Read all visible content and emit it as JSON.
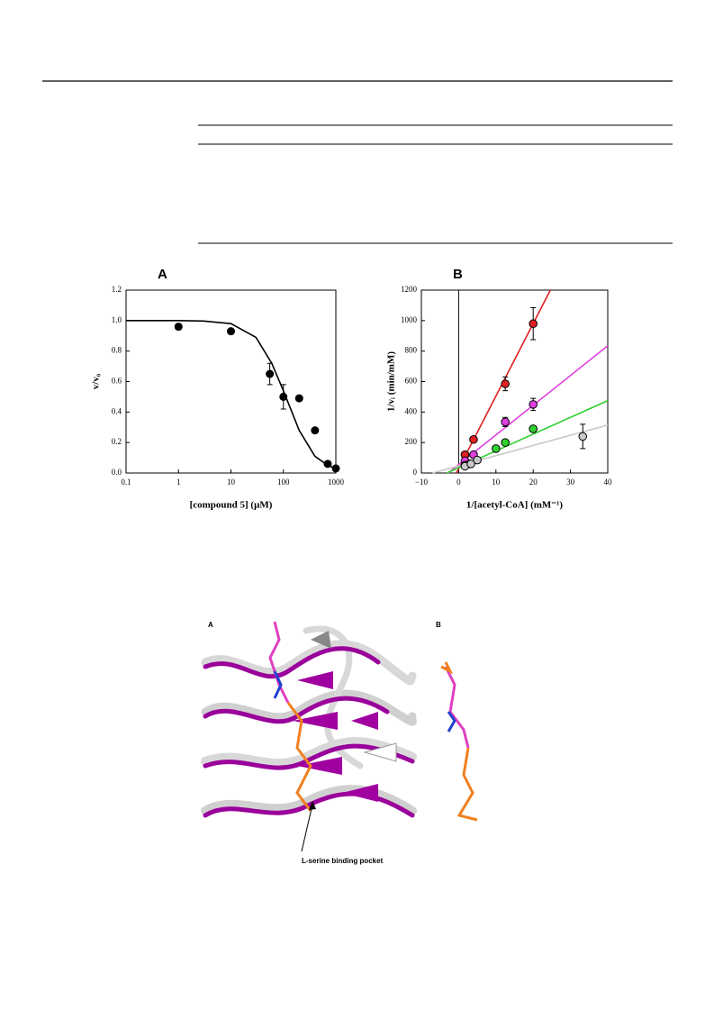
{
  "chart_data": [
    {
      "type": "scatter",
      "panel": "A",
      "xlabel": "[compound 5] (μM)",
      "ylabel": "v/v₀",
      "xscale": "log",
      "xlim": [
        0.1,
        1000
      ],
      "xticks": [
        0.1,
        1,
        10,
        100,
        1000
      ],
      "ylim": [
        0,
        1.2
      ],
      "yticks": [
        {
          "value": 0,
          "label": "0.0"
        },
        0.2,
        0.4,
        0.6,
        0.8,
        {
          "value": 1,
          "label": "1.0"
        },
        1.2
      ],
      "series": [
        {
          "color": "#000000",
          "x": [
            1,
            10,
            55,
            100,
            200,
            400,
            700,
            1000
          ],
          "values": [
            0.96,
            0.93,
            0.65,
            0.5,
            0.49,
            0.28,
            0.06,
            0.03
          ],
          "errors": [
            0.02,
            null,
            0.07,
            0.08,
            null,
            null,
            null,
            null
          ],
          "fit_x": [
            0.1,
            1,
            3,
            10,
            30,
            60,
            100,
            200,
            400,
            700,
            1000
          ],
          "fit_y": [
            1.0,
            1.0,
            0.997,
            0.98,
            0.89,
            0.72,
            0.54,
            0.28,
            0.11,
            0.05,
            0.03
          ]
        }
      ]
    },
    {
      "type": "scatter",
      "panel": "B",
      "xlabel": "1/[acetyl-CoA] (mM⁻¹)",
      "ylabel": "1/vᵢ (min/mM)",
      "xlim": [
        -10,
        40
      ],
      "xticks": [
        {
          "value": -10,
          "label": "−10"
        },
        0,
        10,
        20,
        30,
        40
      ],
      "ylim": [
        0,
        1200
      ],
      "yticks": [
        0,
        200,
        400,
        600,
        800,
        1000,
        1200
      ],
      "series": [
        {
          "color": "#e02020",
          "x": [
            1.7,
            4,
            12.5,
            20
          ],
          "values": [
            120,
            220,
            585,
            980
          ],
          "errors": [
            null,
            null,
            45,
            105
          ],
          "fit_x": [
            -0.6,
            24.6
          ],
          "fit_y": [
            0,
            1200
          ]
        },
        {
          "color": "#e040e0",
          "x": [
            1.7,
            4,
            12.5,
            20
          ],
          "values": [
            80,
            120,
            335,
            450
          ],
          "errors": [
            null,
            null,
            30,
            40
          ],
          "fit_x": [
            -2.8,
            40
          ],
          "fit_y": [
            0,
            835
          ]
        },
        {
          "color": "#30d030",
          "x": [
            1.7,
            3,
            10,
            12.5,
            20
          ],
          "values": [
            50,
            60,
            160,
            200,
            290
          ],
          "errors": [
            null,
            null,
            null,
            null,
            null
          ],
          "fit_x": [
            -3.2,
            40
          ],
          "fit_y": [
            0,
            475
          ]
        },
        {
          "color": "#c8c8c8",
          "x": [
            1.7,
            3.3,
            5,
            33.3
          ],
          "values": [
            45,
            60,
            85,
            240
          ],
          "errors": [
            null,
            null,
            null,
            80
          ],
          "fit_x": [
            -7,
            40
          ],
          "fit_y": [
            0,
            315
          ]
        }
      ]
    }
  ],
  "figure2": {
    "panel_a": "A",
    "panel_b": "B",
    "annotation": "L-serine binding pocket"
  }
}
